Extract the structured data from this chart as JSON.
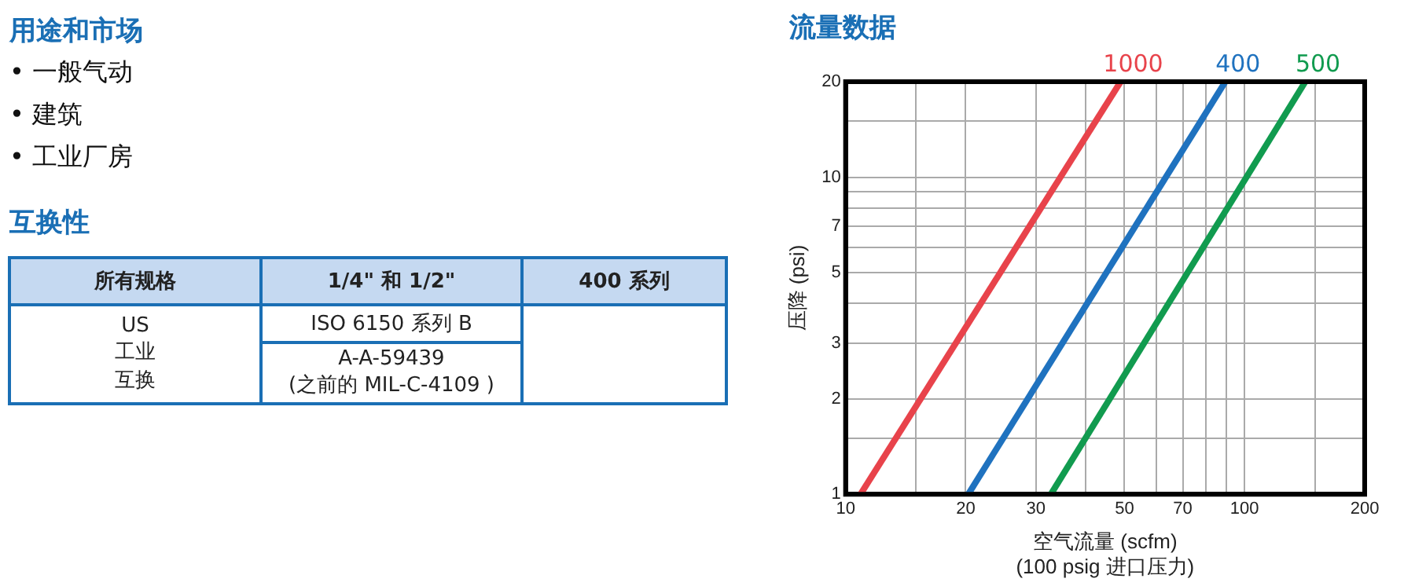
{
  "chart_data": [
    {
      "type": "other",
      "title": "用途和市场",
      "annotations": [
        "• 一般气动",
        "• 建筑",
        "• 工业厂房",
        "互换性",
        "所有规格",
        "1/4\" 和 1/2\"",
        "400 系列",
        "US",
        "工业",
        "互换",
        "ISO 6150 系列 B",
        "A-A-59439",
        "(之前的 MIL-C-4109 )"
      ]
    },
    {
      "type": "line",
      "title": "流量数据",
      "xlabel": "空气流量 (scfm)",
      "ylabel": "压降 (psi)",
      "annotations": [
        "(100 psig 进口压力)"
      ],
      "log": "xy",
      "grid": true,
      "legend": false,
      "marker": "none",
      "line_style": "solid",
      "xlim": [
        10,
        200
      ],
      "xticks": [
        10,
        {
          "value": 15,
          "label": null
        },
        20,
        30,
        {
          "value": 40,
          "label": null
        },
        50,
        {
          "value": 60,
          "label": null
        },
        70,
        {
          "value": 80,
          "label": null
        },
        {
          "value": 90,
          "label": null
        },
        100,
        {
          "value": 150,
          "label": null
        },
        200
      ],
      "ylim": [
        1,
        20
      ],
      "yticks": [
        1,
        {
          "value": 1.5,
          "label": null
        },
        2,
        3,
        {
          "value": 4,
          "label": null
        },
        5,
        {
          "value": 6,
          "label": null
        },
        7,
        {
          "value": 8,
          "label": null
        },
        {
          "value": 9,
          "label": null
        },
        10,
        {
          "value": 15,
          "label": null
        },
        20
      ],
      "series": [
        {
          "name": "1000",
          "color": "#e8434b",
          "x": [
            10.9,
            48.9
          ],
          "values": [
            1,
            20
          ]
        },
        {
          "name": "400",
          "color": "#1f72bf",
          "x": [
            20.3,
            89.5
          ],
          "values": [
            1,
            20
          ]
        },
        {
          "name": "500",
          "color": "#119b4f",
          "x": [
            32.7,
            142
          ],
          "values": [
            1,
            20
          ]
        }
      ]
    }
  ]
}
